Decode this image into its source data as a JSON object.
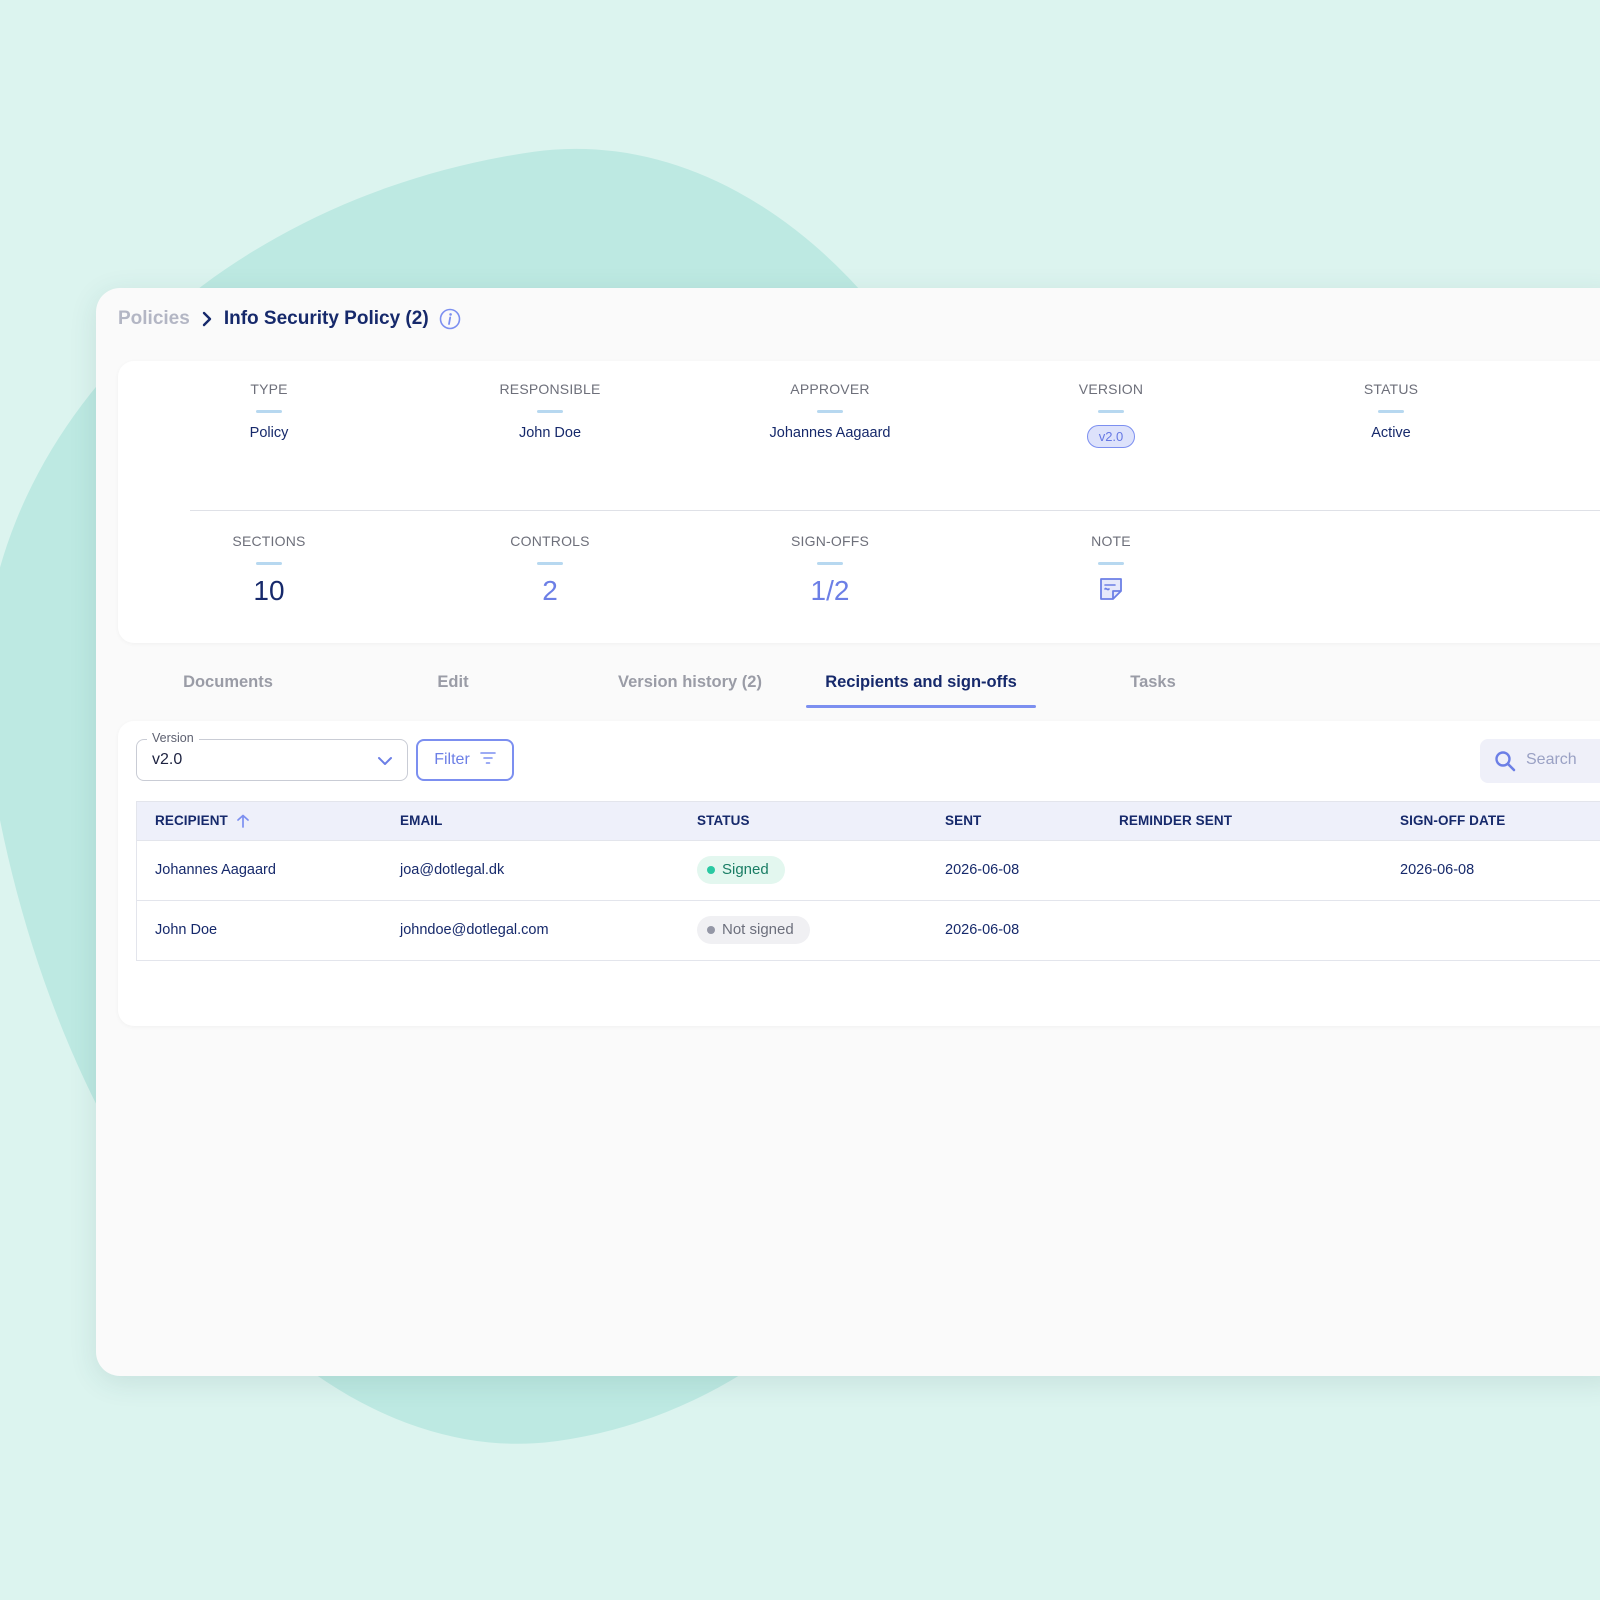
{
  "breadcrumb": {
    "root": "Policies",
    "current": "Info Security Policy (2)"
  },
  "icons": {
    "breadcrumb_separator": "chevron-right-icon",
    "info": "info-icon",
    "note": "note-icon",
    "version_select": "chevron-down-icon",
    "filter": "filter-icon",
    "search": "search-icon",
    "sort": "sort-ascending-icon"
  },
  "summary": {
    "type": {
      "label": "TYPE",
      "value": "Policy"
    },
    "responsible": {
      "label": "RESPONSIBLE",
      "value": "John Doe"
    },
    "approver": {
      "label": "APPROVER",
      "value": "Johannes Aagaard"
    },
    "version": {
      "label": "VERSION",
      "value": "v2.0"
    },
    "status": {
      "label": "STATUS",
      "value": "Active"
    },
    "sections": {
      "label": "SECTIONS",
      "value": "10"
    },
    "controls": {
      "label": "CONTROLS",
      "value": "2"
    },
    "signoffs": {
      "label": "SIGN-OFFS",
      "value": "1/2"
    },
    "note": {
      "label": "NOTE"
    }
  },
  "tabs": [
    {
      "label": "Documents",
      "active": false
    },
    {
      "label": "Edit",
      "active": false
    },
    {
      "label": "Version history (2)",
      "active": false
    },
    {
      "label": "Recipients and sign-offs",
      "active": true
    },
    {
      "label": "Tasks",
      "active": false
    }
  ],
  "toolbar": {
    "version_select": {
      "label": "Version",
      "value": "v2.0"
    },
    "filter_label": "Filter",
    "search_placeholder": "Search"
  },
  "table": {
    "columns": [
      "RECIPIENT",
      "EMAIL",
      "STATUS",
      "SENT",
      "REMINDER SENT",
      "SIGN-OFF DATE"
    ],
    "sorted_column": "RECIPIENT",
    "rows": [
      {
        "recipient": "Johannes Aagaard",
        "email": "joa@dotlegal.dk",
        "status": "Signed",
        "sent": "2026-06-08",
        "reminder_sent": "",
        "signoff_date": "2026-06-08"
      },
      {
        "recipient": "John Doe",
        "email": "johndoe@dotlegal.com",
        "status": "Not signed",
        "sent": "2026-06-08",
        "reminder_sent": "",
        "signoff_date": ""
      }
    ]
  },
  "colors": {
    "background": "#dcf4ef",
    "accent": "#7c8ff0",
    "primary_text": "#16296b",
    "signed": "#29c9a2"
  }
}
